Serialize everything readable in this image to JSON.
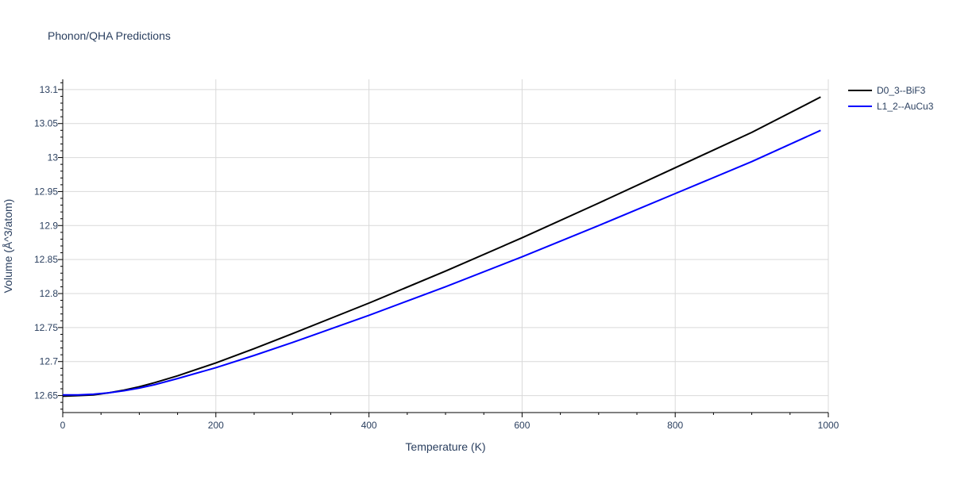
{
  "chart_data": {
    "type": "line",
    "title": "Phonon/QHA Predictions",
    "xlabel": "Temperature (K)",
    "ylabel": "Volume (Å^3/atom)",
    "xlim": [
      0,
      1000
    ],
    "ylim": [
      12.625,
      13.115
    ],
    "xticks": [
      0,
      200,
      400,
      600,
      800,
      1000
    ],
    "xtick_labels": [
      "0",
      "200",
      "400",
      "600",
      "800",
      "1000"
    ],
    "yticks": [
      12.65,
      12.7,
      12.75,
      12.8,
      12.85,
      12.9,
      12.95,
      13.0,
      13.05,
      13.1
    ],
    "ytick_labels": [
      "12.65",
      "12.7",
      "12.75",
      "12.8",
      "12.85",
      "12.9",
      "12.95",
      "13",
      "13.05",
      "13.1"
    ],
    "grid": true,
    "legend_position": "top-right outside",
    "series": [
      {
        "name": "D0_3--BiF3",
        "color": "#000000",
        "x": [
          0,
          20,
          40,
          60,
          80,
          100,
          120,
          150,
          200,
          250,
          300,
          400,
          500,
          600,
          700,
          800,
          900,
          990
        ],
        "y": [
          12.649,
          12.65,
          12.651,
          12.654,
          12.658,
          12.663,
          12.669,
          12.679,
          12.698,
          12.719,
          12.741,
          12.786,
          12.833,
          12.882,
          12.933,
          12.985,
          13.037,
          13.089
        ]
      },
      {
        "name": "L1_2--AuCu3",
        "color": "#0000ff",
        "x": [
          0,
          20,
          40,
          60,
          80,
          100,
          120,
          150,
          200,
          250,
          300,
          400,
          500,
          600,
          700,
          800,
          900,
          990
        ],
        "y": [
          12.651,
          12.651,
          12.652,
          12.654,
          12.657,
          12.661,
          12.666,
          12.675,
          12.691,
          12.709,
          12.728,
          12.768,
          12.81,
          12.854,
          12.9,
          12.947,
          12.994,
          13.04
        ]
      }
    ]
  }
}
